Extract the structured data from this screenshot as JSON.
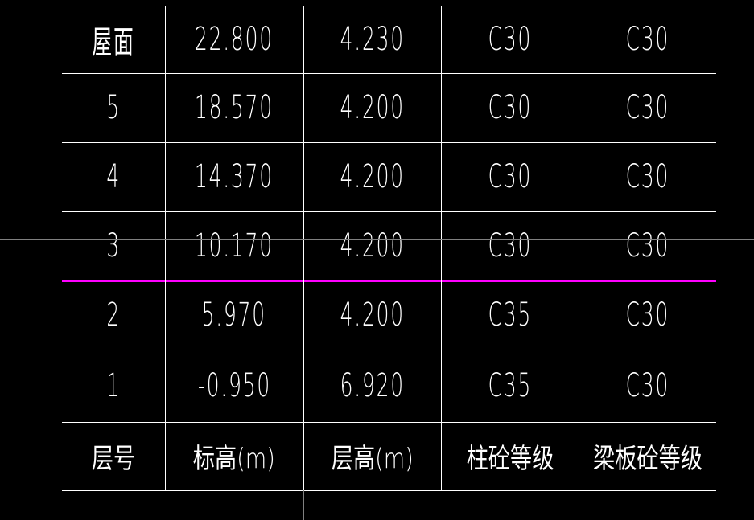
{
  "table": {
    "rows": [
      [
        "屋面",
        "22.800",
        "4.230",
        "C30",
        "C30"
      ],
      [
        "5",
        "18.570",
        "4.200",
        "C30",
        "C30"
      ],
      [
        "4",
        "14.370",
        "4.200",
        "C30",
        "C30"
      ],
      [
        "3",
        "10.170",
        "4.200",
        "C30",
        "C30"
      ],
      [
        "2",
        "5.970",
        "4.200",
        "C35",
        "C30"
      ],
      [
        "1",
        "-0.950",
        "6.920",
        "C35",
        "C30"
      ]
    ],
    "header": [
      "层号",
      "标高(m)",
      "层高(m)",
      "柱砼等级",
      "梁板砼等级"
    ]
  },
  "colors": {
    "background": "#000000",
    "lines": "#ffffff",
    "highlight_line": "#ff00ff",
    "crosshair": "#808080"
  }
}
